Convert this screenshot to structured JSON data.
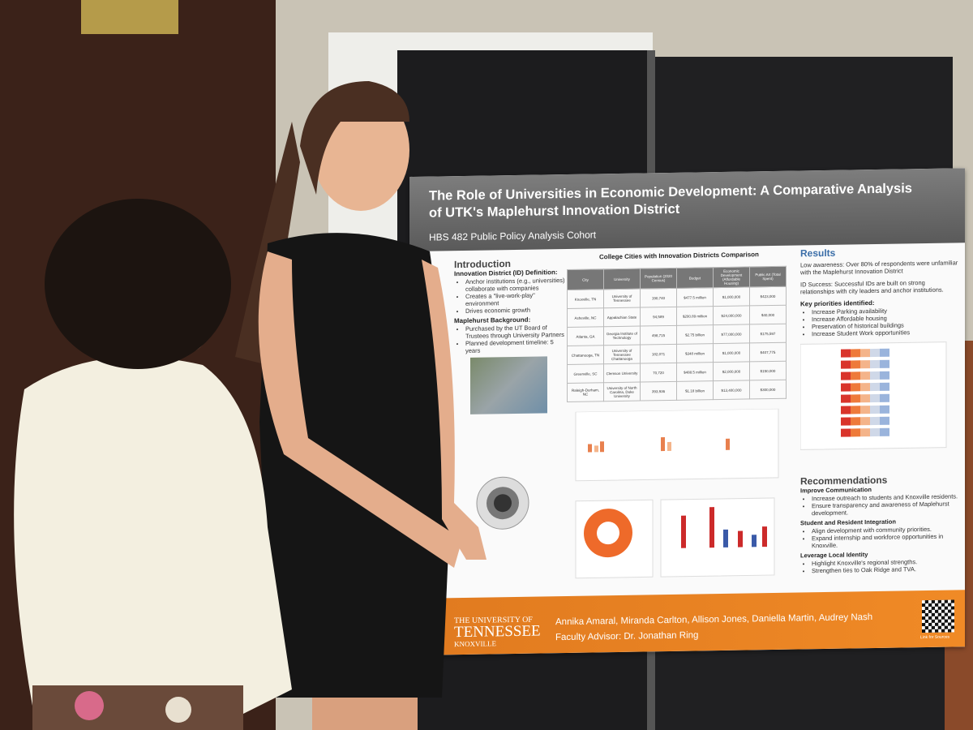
{
  "poster": {
    "title": "The Role of Universities in Economic Development: A Comparative Analysis of UTK's Maplehurst Innovation District",
    "subtitle": "HBS 482 Public Policy Analysis Cohort",
    "introduction": {
      "heading": "Introduction",
      "subheading": "Innovation District (ID) Definition:",
      "items": [
        "Anchor institutions (e.g., universities) collaborate with companies",
        "Creates a \"live-work-play\" environment",
        "Drives economic growth"
      ],
      "subheading2": "Maplehurst Background:",
      "items2": [
        "Purchased by the UT Board of Trustees through University Partners",
        "Planned development timeline: 5 years"
      ]
    },
    "table": {
      "title": "College Cities with Innovation Districts Comparison",
      "header": [
        "City",
        "University",
        "Population (2020 Census)",
        "Budget",
        "Economic Development (Affordable Housing)",
        "Public Art (Total Spent)"
      ],
      "rows": [
        [
          "Knoxville, TN",
          "University of Tennessee",
          "190,740",
          "$477.5 million",
          "$1,000,000",
          "$423,000"
        ],
        [
          "Asheville, NC",
          "Appalachian State",
          "94,589",
          "$200.89 million",
          "$24,000,000",
          "$40,000"
        ],
        [
          "Atlanta, GA",
          "Georgia Institute of Technology",
          "498,715",
          "$2.75 billion",
          "$77,000,000",
          "$175,597"
        ],
        [
          "Chattanooga, TN",
          "University of Tennessee Chattanooga",
          "182,071",
          "$348 million",
          "$1,000,000",
          "$407,775"
        ],
        [
          "Greenville, SC",
          "Clemson University",
          "70,720",
          "$488.5 million",
          "$2,000,000",
          "$150,000"
        ],
        [
          "Raleigh-Durham, NC",
          "University of North Carolina, Duke University",
          "393,936",
          "$1.18 billion",
          "$13,400,000",
          "$300,000"
        ]
      ]
    },
    "results": {
      "heading": "Results",
      "items": [
        "Low awareness: Over 80% of respondents were unfamiliar with the Maplehurst Innovation District",
        "ID Success: Successful IDs are built on strong relationships with city leaders and anchor institutions."
      ],
      "priorities_heading": "Key priorities identified:",
      "priorities": [
        "Increase Parking availability",
        "Increase Affordable housing",
        "Preservation of historical buildings",
        "Increase Student Work opportunities"
      ]
    },
    "recommendations": {
      "heading": "Recommendations",
      "groups": [
        {
          "heading": "Improve Communication",
          "items": [
            "Increase outreach to students and Knoxville residents.",
            "Ensure transparency and awareness of Maplehurst development."
          ]
        },
        {
          "heading": "Student and Resident Integration",
          "items": [
            "Align development with community priorities.",
            "Expand internship and workforce opportunities in Knoxville."
          ]
        },
        {
          "heading": "Leverage Local Identity",
          "items": [
            "Highlight Knoxville's regional strengths.",
            "Strengthen ties to Oak Ridge and TVA."
          ]
        }
      ]
    },
    "university": [
      "THE UNIVERSITY OF",
      "TENNESSEE",
      "KNOXVILLE"
    ],
    "authors": "Annika Amaral, Miranda Carlton, Allison Jones, Daniella Martin, Audrey Nash",
    "advisor": "Faculty Advisor: Dr. Jonathan Ring",
    "qr_label": "Link for Sources"
  }
}
